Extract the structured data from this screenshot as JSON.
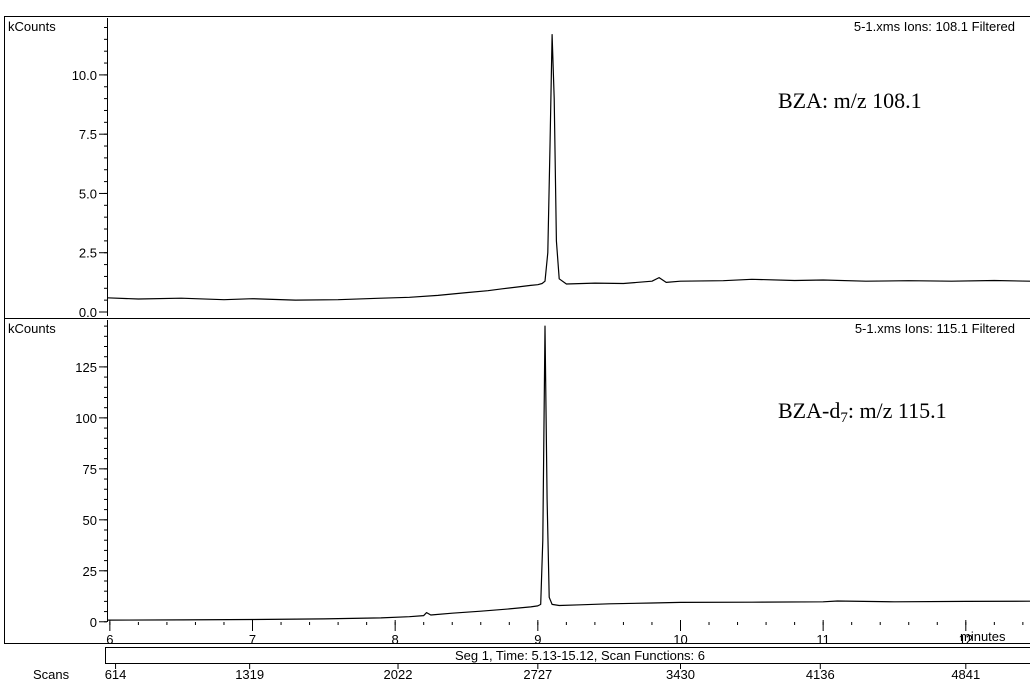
{
  "chart_data": [
    {
      "type": "line",
      "panel": "top",
      "units_label": "kCounts",
      "header": "5-1.xms Ions: 108.1 Filtered",
      "annotation": "BZA: m/z 108.1",
      "ylim": [
        0,
        12.4
      ],
      "yticks": [
        0.0,
        2.5,
        5.0,
        7.5,
        10.0
      ],
      "ytick_labels": [
        "0.0",
        "2.5",
        "5.0",
        "7.5",
        "10.0"
      ],
      "xlim": [
        5.98,
        12.45
      ],
      "series": [
        {
          "x": [
            5.98,
            6.2,
            6.5,
            6.8,
            7.0,
            7.3,
            7.6,
            7.9,
            8.1,
            8.3,
            8.5,
            8.65,
            8.75,
            8.85,
            8.95,
            9.0,
            9.03,
            9.05,
            9.07,
            9.085,
            9.1,
            9.115,
            9.13,
            9.15,
            9.2,
            9.4,
            9.6,
            9.8,
            9.85,
            9.9,
            10.0,
            10.3,
            10.5,
            10.8,
            11.0,
            11.3,
            11.6,
            11.9,
            12.2,
            12.45
          ],
          "y": [
            0.6,
            0.55,
            0.58,
            0.52,
            0.56,
            0.5,
            0.52,
            0.58,
            0.62,
            0.7,
            0.82,
            0.9,
            0.98,
            1.05,
            1.12,
            1.15,
            1.2,
            1.3,
            2.5,
            7.0,
            11.7,
            9.0,
            3.0,
            1.4,
            1.18,
            1.22,
            1.2,
            1.3,
            1.45,
            1.25,
            1.3,
            1.32,
            1.38,
            1.33,
            1.35,
            1.3,
            1.32,
            1.3,
            1.33,
            1.3
          ]
        }
      ]
    },
    {
      "type": "line",
      "panel": "bottom",
      "units_label": "kCounts",
      "header": "5-1.xms Ions: 115.1 Filtered",
      "annotation_main": "BZA-d",
      "annotation_sub": "7",
      "annotation_tail": ": m/z 115.1",
      "ylim": [
        -6,
        148
      ],
      "yticks": [
        0,
        25,
        50,
        75,
        100,
        125
      ],
      "ytick_labels": [
        "0",
        "25",
        "50",
        "75",
        "100",
        "125"
      ],
      "xlabel": "minutes",
      "xlim": [
        5.98,
        12.45
      ],
      "xticks": [
        6,
        7,
        8,
        9,
        10,
        11,
        12
      ],
      "xtick_labels": [
        "6",
        "7",
        "8",
        "9",
        "10",
        "11",
        "12"
      ],
      "series": [
        {
          "x": [
            5.98,
            6.5,
            7.0,
            7.5,
            7.9,
            8.1,
            8.2,
            8.22,
            8.25,
            8.4,
            8.6,
            8.8,
            8.95,
            9.0,
            9.02,
            9.035,
            9.05,
            9.065,
            9.08,
            9.1,
            9.15,
            9.3,
            9.5,
            9.8,
            10.0,
            10.5,
            11.0,
            11.1,
            11.5,
            12.0,
            12.45
          ],
          "y": [
            0.8,
            0.9,
            1.1,
            1.4,
            1.9,
            2.5,
            3.0,
            4.5,
            3.3,
            4.2,
            5.2,
            6.3,
            7.3,
            7.8,
            8.5,
            40,
            145,
            60,
            12,
            8.5,
            8.0,
            8.3,
            8.8,
            9.2,
            9.5,
            9.6,
            9.8,
            10.2,
            9.8,
            10.0,
            10.1
          ]
        }
      ]
    }
  ],
  "segment_bar": {
    "label": "Seg 1, Time: 5.13-15.12, Scan Functions: 6"
  },
  "scans": {
    "label": "Scans",
    "ticks": [
      {
        "x": 6.04,
        "label": "614"
      },
      {
        "x": 6.98,
        "label": "1319"
      },
      {
        "x": 8.02,
        "label": "2022"
      },
      {
        "x": 9.0,
        "label": "2727"
      },
      {
        "x": 10.0,
        "label": "3430"
      },
      {
        "x": 10.98,
        "label": "4136"
      },
      {
        "x": 12.0,
        "label": "4841"
      }
    ]
  },
  "colors": {
    "line": "#000000",
    "frame": "#000000",
    "background": "#ffffff"
  }
}
